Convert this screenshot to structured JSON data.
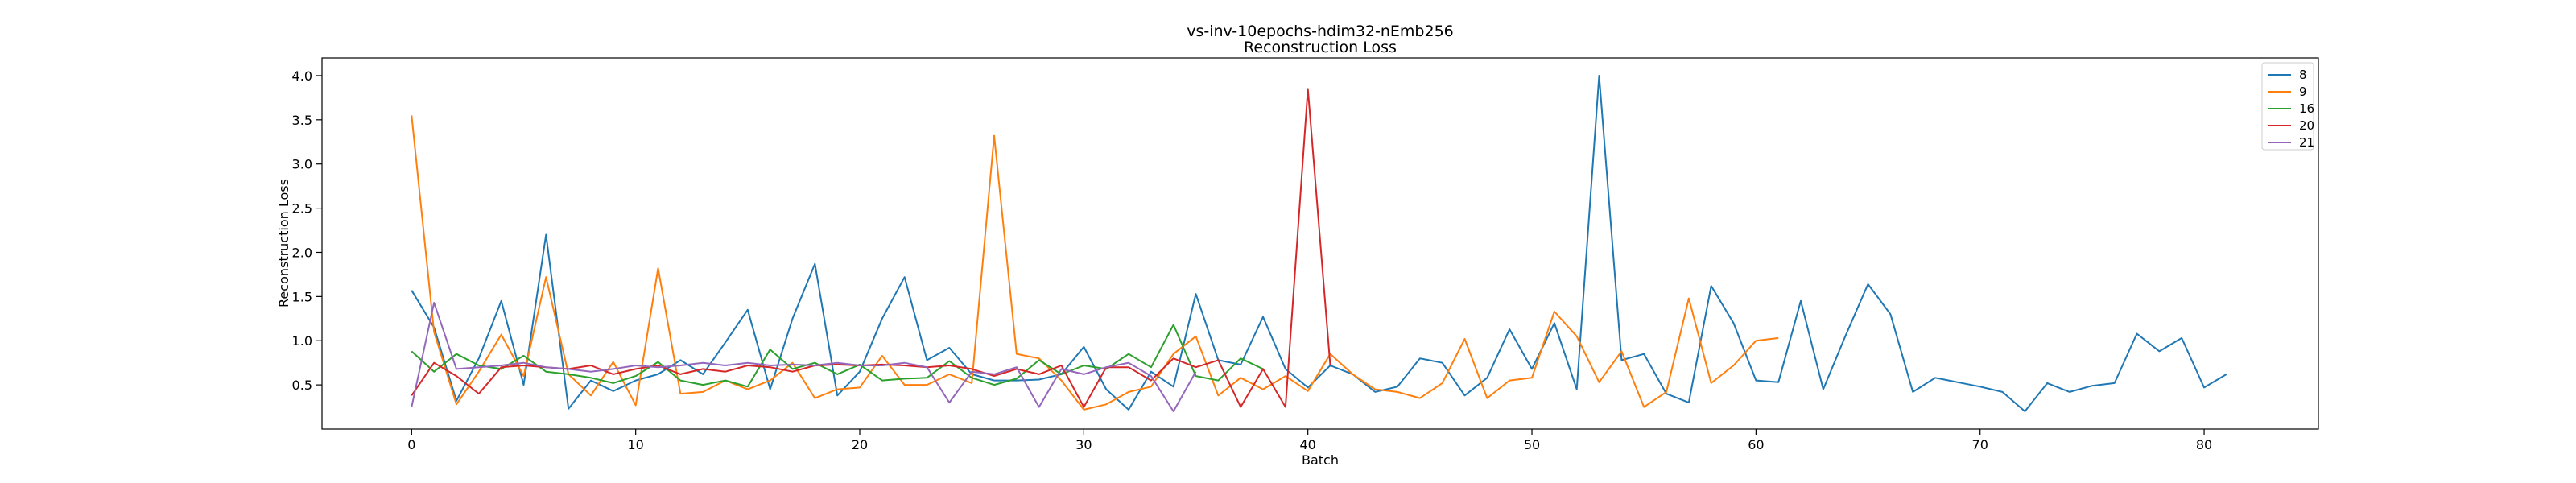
{
  "chart_data": {
    "type": "line",
    "title": "vs-inv-10epochs-hdim32-nEmb256",
    "subtitle": "Reconstruction Loss",
    "xlabel": "Batch",
    "ylabel": "Reconstruction Loss",
    "xlim": [
      -4,
      85.1
    ],
    "ylim": [
      0.0,
      4.2
    ],
    "xticks": [
      0,
      10,
      20,
      30,
      40,
      50,
      60,
      70,
      80
    ],
    "yticks": [
      0.5,
      1.0,
      1.5,
      2.0,
      2.5,
      3.0,
      3.5,
      4.0
    ],
    "xtick_labels": [
      "0",
      "10",
      "20",
      "30",
      "40",
      "50",
      "60",
      "70",
      "80"
    ],
    "ytick_labels": [
      "0.5",
      "1.0",
      "1.5",
      "2.0",
      "2.5",
      "3.0",
      "3.5",
      "4.0"
    ],
    "grid": false,
    "legend_position": "top-right",
    "series": [
      {
        "name": "8",
        "color": "#1f77b4",
        "values": [
          1.57,
          1.15,
          0.32,
          0.8,
          1.45,
          0.5,
          2.2,
          0.23,
          0.55,
          0.43,
          0.55,
          0.62,
          0.78,
          0.62,
          0.98,
          1.35,
          0.45,
          1.25,
          1.87,
          0.38,
          0.65,
          1.25,
          1.72,
          0.78,
          0.92,
          0.62,
          0.55,
          0.55,
          0.56,
          0.62,
          0.93,
          0.45,
          0.22,
          0.65,
          0.48,
          1.53,
          0.78,
          0.73,
          1.27,
          0.68,
          0.47,
          0.72,
          0.62,
          0.42,
          0.48,
          0.8,
          0.75,
          0.38,
          0.58,
          1.13,
          0.68,
          1.2,
          0.45,
          4.0,
          0.78,
          0.85,
          0.4,
          0.3,
          1.62,
          1.2,
          0.55,
          0.53,
          1.45,
          0.45,
          1.06,
          1.64,
          1.3,
          0.42,
          0.58,
          0.53,
          0.48,
          0.42,
          0.2,
          0.52,
          0.42,
          0.49,
          0.52,
          1.08,
          0.88,
          1.03,
          0.47,
          0.62
        ]
      },
      {
        "name": "9",
        "color": "#ff7f0e",
        "values": [
          3.55,
          1.1,
          0.28,
          0.65,
          1.07,
          0.6,
          1.72,
          0.62,
          0.38,
          0.76,
          0.27,
          1.82,
          0.4,
          0.42,
          0.55,
          0.45,
          0.55,
          0.75,
          0.35,
          0.45,
          0.47,
          0.83,
          0.5,
          0.5,
          0.62,
          0.52,
          3.32,
          0.85,
          0.8,
          0.55,
          0.22,
          0.28,
          0.42,
          0.48,
          0.85,
          1.05,
          0.38,
          0.58,
          0.45,
          0.6,
          0.43,
          0.85,
          0.62,
          0.45,
          0.42,
          0.35,
          0.52,
          1.02,
          0.35,
          0.55,
          0.58,
          1.33,
          1.05,
          0.53,
          0.88,
          0.25,
          0.42,
          1.48,
          0.52,
          0.72,
          1.0,
          1.03
        ]
      },
      {
        "name": "16",
        "color": "#2ca02c",
        "values": [
          0.88,
          0.65,
          0.85,
          0.72,
          0.68,
          0.83,
          0.65,
          0.62,
          0.58,
          0.52,
          0.6,
          0.76,
          0.55,
          0.5,
          0.55,
          0.48,
          0.9,
          0.68,
          0.75,
          0.62,
          0.73,
          0.55,
          0.57,
          0.58,
          0.77,
          0.58,
          0.5,
          0.57,
          0.78,
          0.62,
          0.72,
          0.68,
          0.85,
          0.7,
          1.18,
          0.6,
          0.55,
          0.8,
          0.68
        ]
      },
      {
        "name": "20",
        "color": "#d62728",
        "values": [
          0.38,
          0.75,
          0.6,
          0.4,
          0.7,
          0.72,
          0.7,
          0.68,
          0.72,
          0.62,
          0.68,
          0.72,
          0.62,
          0.68,
          0.65,
          0.72,
          0.7,
          0.65,
          0.72,
          0.73,
          0.72,
          0.73,
          0.72,
          0.7,
          0.72,
          0.68,
          0.6,
          0.68,
          0.62,
          0.72,
          0.25,
          0.7,
          0.7,
          0.55,
          0.8,
          0.7,
          0.78,
          0.25,
          0.68,
          0.25,
          3.85,
          0.72
        ]
      },
      {
        "name": "21",
        "color": "#9467bd",
        "values": [
          0.25,
          1.43,
          0.68,
          0.7,
          0.72,
          0.75,
          0.7,
          0.68,
          0.65,
          0.68,
          0.72,
          0.7,
          0.72,
          0.75,
          0.72,
          0.75,
          0.72,
          0.73,
          0.72,
          0.75,
          0.72,
          0.72,
          0.75,
          0.7,
          0.3,
          0.65,
          0.62,
          0.7,
          0.25,
          0.68,
          0.62,
          0.7,
          0.75,
          0.6,
          0.2,
          0.65
        ]
      }
    ]
  }
}
